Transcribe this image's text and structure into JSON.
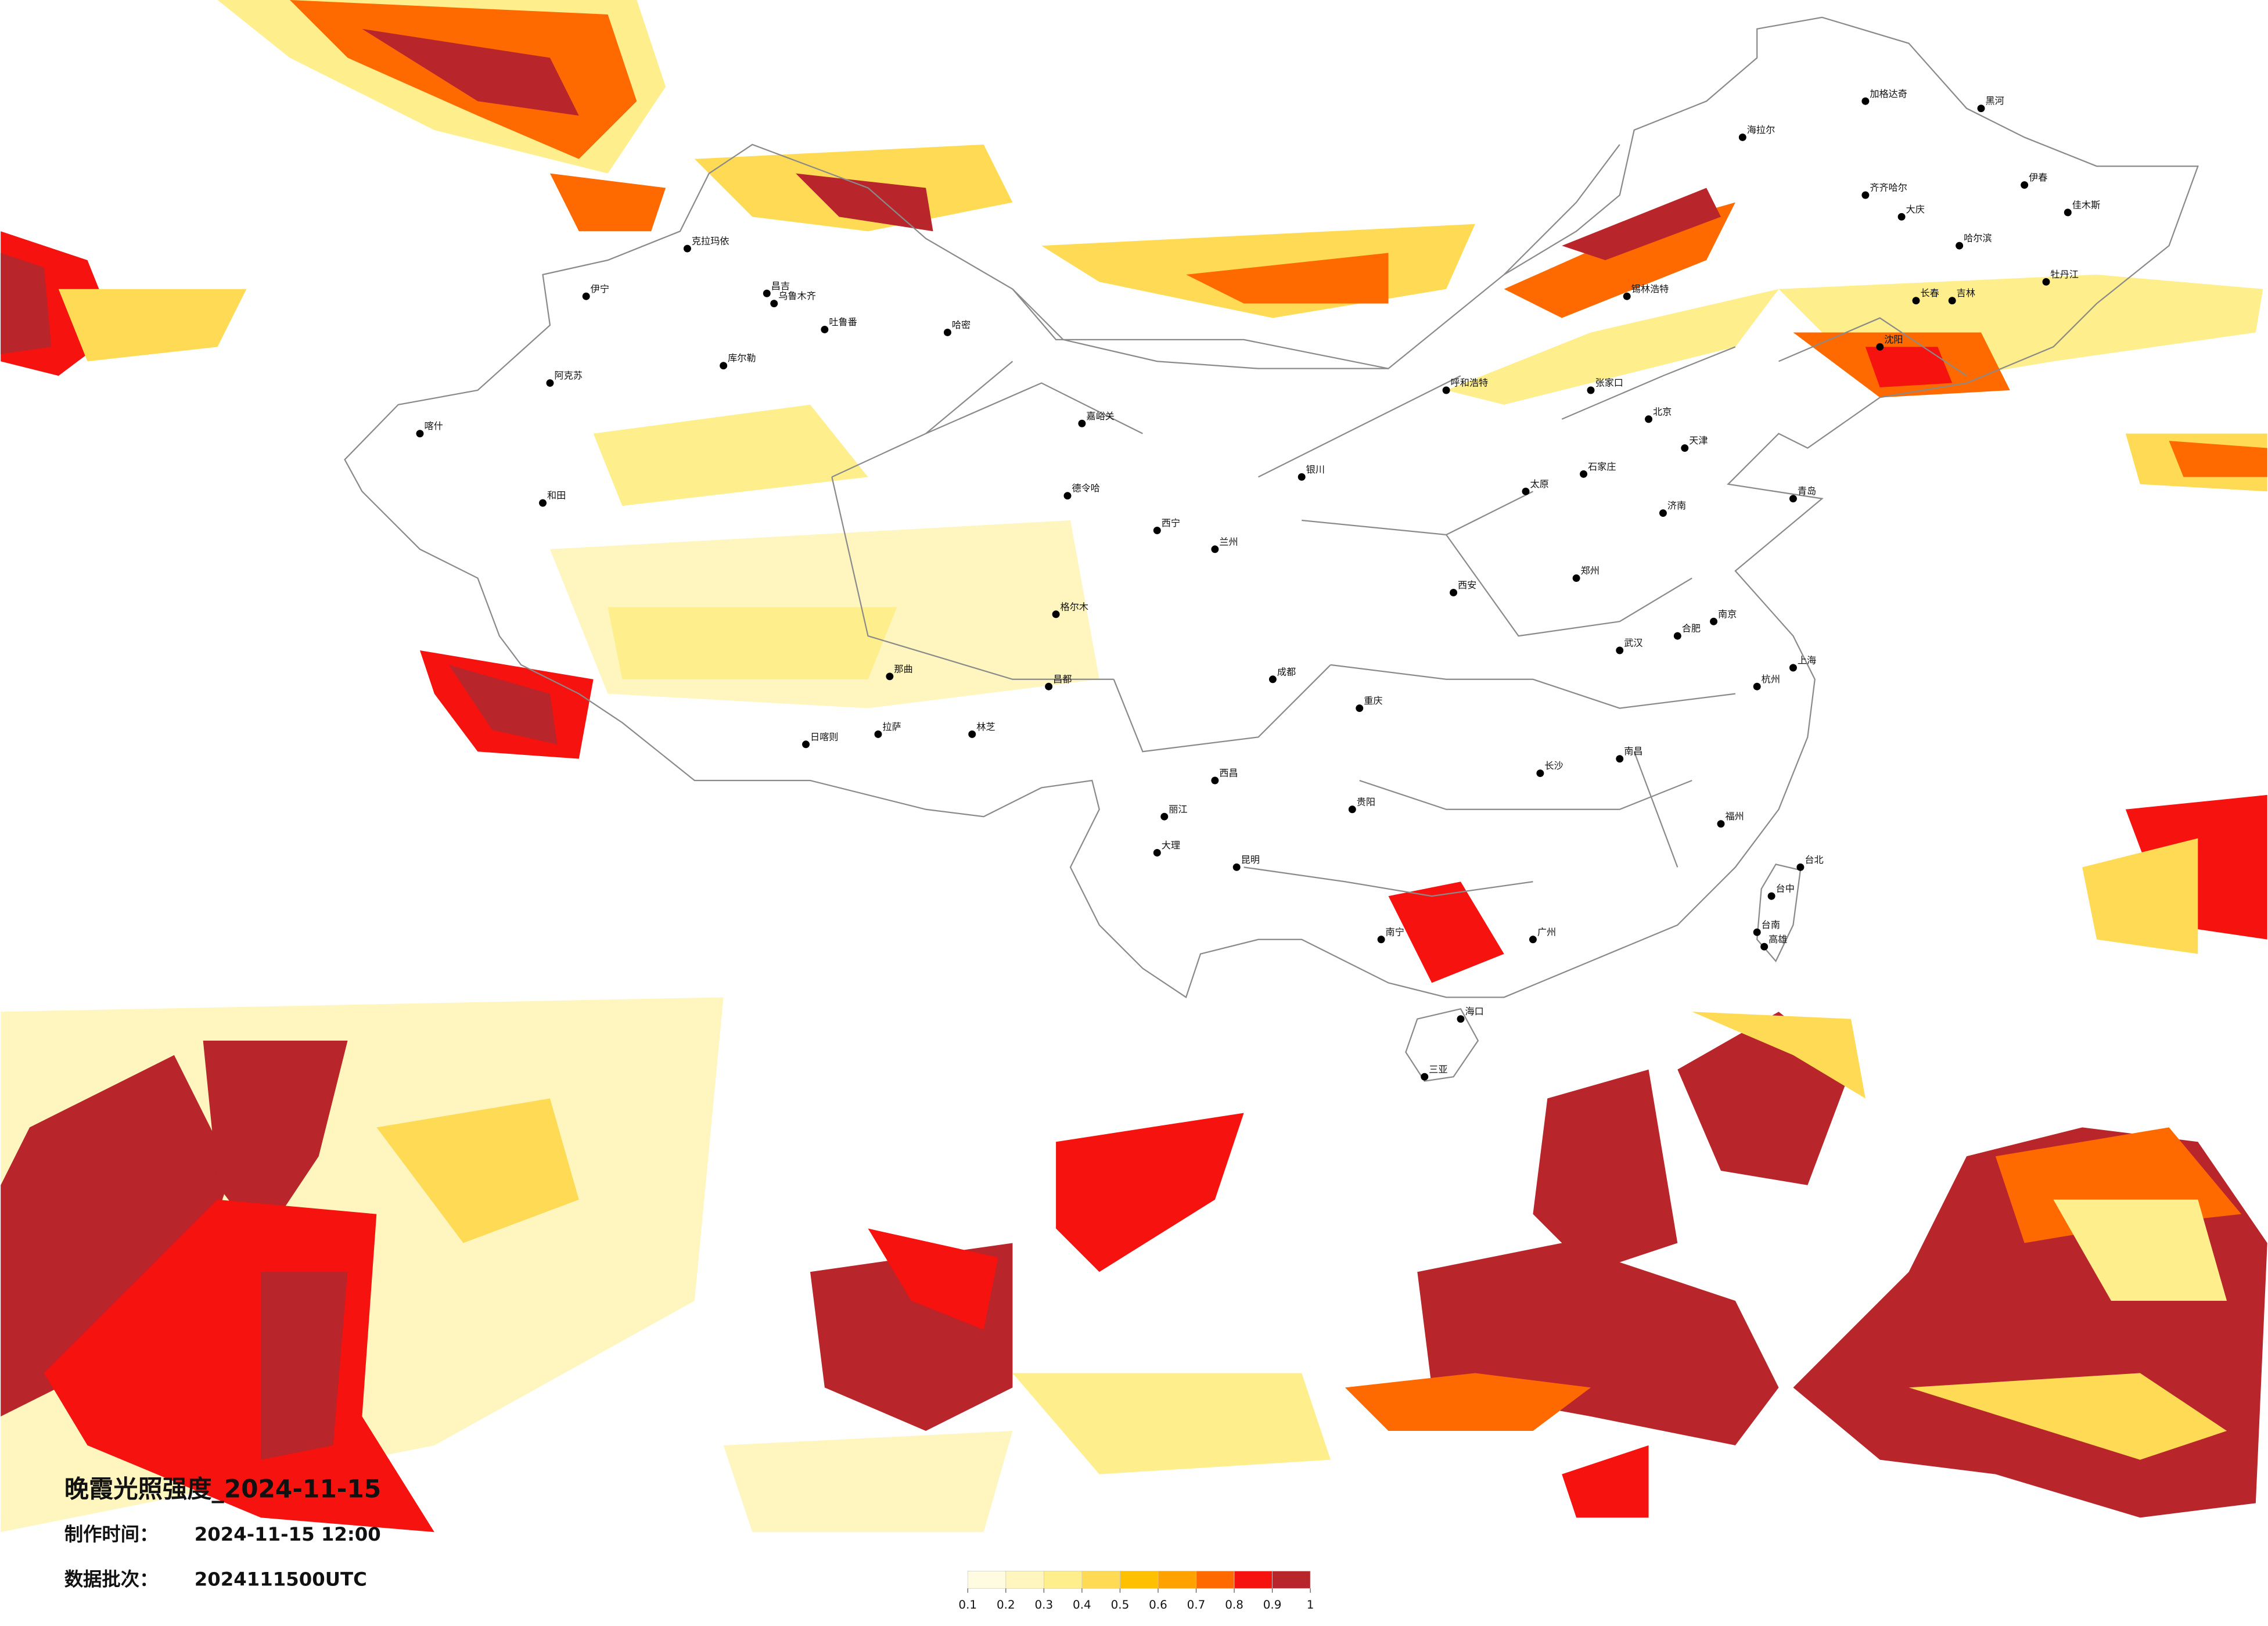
{
  "title": "晚霞光照强度_2024-11-15",
  "info": {
    "made_label": "制作时间：",
    "made_value": "2024-11-15 12:00",
    "batch_label": "数据批次：",
    "batch_value": "2024111500UTC"
  },
  "colorbar": {
    "ticks": [
      0.1,
      0.2,
      0.3,
      0.4,
      0.5,
      0.6,
      0.7,
      0.8,
      0.9,
      1
    ],
    "colors": [
      "#fffbe0",
      "#fff5bf",
      "#ffee8c",
      "#ffdb55",
      "#ffc000",
      "#ffa200",
      "#ff6a00",
      "#f5120f",
      "#b8252b"
    ]
  },
  "cities": [
    "伊宁",
    "克拉玛依",
    "昌吉",
    "乌鲁木齐",
    "吐鲁番",
    "哈密",
    "库尔勒",
    "阿克苏",
    "喀什",
    "和田",
    "嘉峪关",
    "德令哈",
    "格尔木",
    "那曲",
    "昌都",
    "拉萨",
    "日喀则",
    "林芝",
    "海拉尔",
    "加格达奇",
    "黑河",
    "齐齐哈尔",
    "大庆",
    "哈尔滨",
    "伊春",
    "佳木斯",
    "牡丹江",
    "长春",
    "吉林",
    "沈阳",
    "锡林浩特",
    "呼和浩特",
    "张家口",
    "北京",
    "天津",
    "石家庄",
    "太原",
    "济南",
    "青岛",
    "郑州",
    "西安",
    "兰州",
    "西宁",
    "银川",
    "成都",
    "重庆",
    "武汉",
    "合肥",
    "南京",
    "上海",
    "杭州",
    "南昌",
    "长沙",
    "贵阳",
    "昆明",
    "大理",
    "丽江",
    "西昌",
    "南宁",
    "广州",
    "福州",
    "台北",
    "台中",
    "台南",
    "高雄",
    "海口",
    "三亚"
  ]
}
